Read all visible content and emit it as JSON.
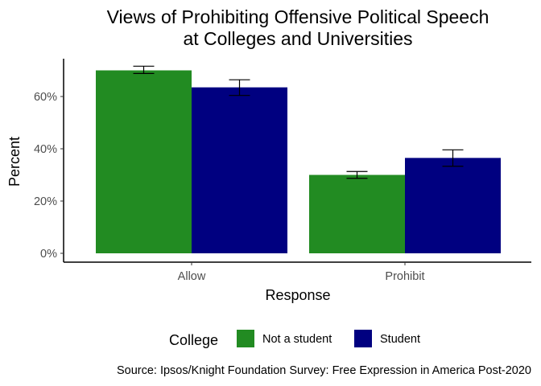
{
  "chart_data": {
    "type": "bar",
    "title": "Views of Prohibiting Offensive Political Speech",
    "subtitle": "at Colleges and Universities",
    "xlabel": "Response",
    "ylabel": "Percent",
    "categories": [
      "Allow",
      "Prohibit"
    ],
    "ylim": [
      0,
      0.75
    ],
    "yticks": [
      0,
      0.2,
      0.4,
      0.6
    ],
    "ytick_labels": [
      "0%",
      "20%",
      "40%",
      "60%"
    ],
    "grid": false,
    "series": [
      {
        "name": "Not a student",
        "color": "#228b22",
        "values": [
          0.7,
          0.3
        ],
        "error_low": [
          0.688,
          0.287
        ],
        "error_high": [
          0.716,
          0.313
        ]
      },
      {
        "name": "Student",
        "color": "#000080",
        "values": [
          0.635,
          0.365
        ],
        "error_low": [
          0.604,
          0.333
        ],
        "error_high": [
          0.664,
          0.396
        ]
      }
    ],
    "legend": {
      "title": "College",
      "position": "bottom"
    },
    "caption": "Source: Ipsos/Knight Foundation Survey: Free Expression in America Post-2020"
  }
}
